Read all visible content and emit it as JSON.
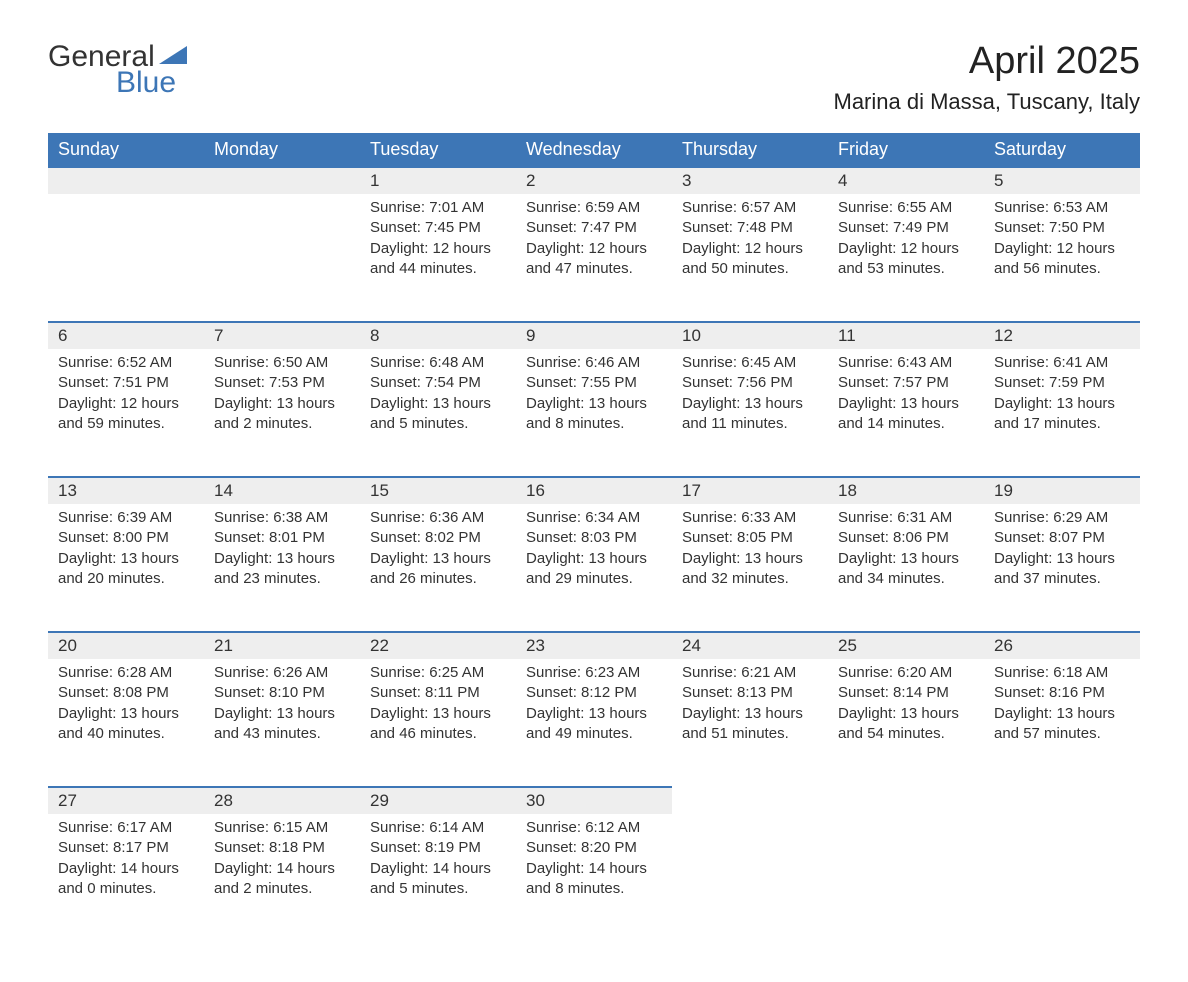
{
  "logo": {
    "text1": "General",
    "text2": "Blue",
    "brand_color": "#3d76b6"
  },
  "title": "April 2025",
  "location": "Marina di Massa, Tuscany, Italy",
  "colors": {
    "header_bg": "#3d76b6",
    "header_text": "#ffffff",
    "daynum_bg": "#eeeeee",
    "text": "#333333",
    "border": "#3d76b6"
  },
  "fonts": {
    "title_size_pt": 28,
    "location_size_pt": 17,
    "header_size_pt": 14,
    "daynum_size_pt": 13,
    "body_size_pt": 11
  },
  "weekdays": [
    "Sunday",
    "Monday",
    "Tuesday",
    "Wednesday",
    "Thursday",
    "Friday",
    "Saturday"
  ],
  "weeks": [
    [
      null,
      null,
      {
        "day": "1",
        "sunrise": "Sunrise: 7:01 AM",
        "sunset": "Sunset: 7:45 PM",
        "daylight": "Daylight: 12 hours and 44 minutes."
      },
      {
        "day": "2",
        "sunrise": "Sunrise: 6:59 AM",
        "sunset": "Sunset: 7:47 PM",
        "daylight": "Daylight: 12 hours and 47 minutes."
      },
      {
        "day": "3",
        "sunrise": "Sunrise: 6:57 AM",
        "sunset": "Sunset: 7:48 PM",
        "daylight": "Daylight: 12 hours and 50 minutes."
      },
      {
        "day": "4",
        "sunrise": "Sunrise: 6:55 AM",
        "sunset": "Sunset: 7:49 PM",
        "daylight": "Daylight: 12 hours and 53 minutes."
      },
      {
        "day": "5",
        "sunrise": "Sunrise: 6:53 AM",
        "sunset": "Sunset: 7:50 PM",
        "daylight": "Daylight: 12 hours and 56 minutes."
      }
    ],
    [
      {
        "day": "6",
        "sunrise": "Sunrise: 6:52 AM",
        "sunset": "Sunset: 7:51 PM",
        "daylight": "Daylight: 12 hours and 59 minutes."
      },
      {
        "day": "7",
        "sunrise": "Sunrise: 6:50 AM",
        "sunset": "Sunset: 7:53 PM",
        "daylight": "Daylight: 13 hours and 2 minutes."
      },
      {
        "day": "8",
        "sunrise": "Sunrise: 6:48 AM",
        "sunset": "Sunset: 7:54 PM",
        "daylight": "Daylight: 13 hours and 5 minutes."
      },
      {
        "day": "9",
        "sunrise": "Sunrise: 6:46 AM",
        "sunset": "Sunset: 7:55 PM",
        "daylight": "Daylight: 13 hours and 8 minutes."
      },
      {
        "day": "10",
        "sunrise": "Sunrise: 6:45 AM",
        "sunset": "Sunset: 7:56 PM",
        "daylight": "Daylight: 13 hours and 11 minutes."
      },
      {
        "day": "11",
        "sunrise": "Sunrise: 6:43 AM",
        "sunset": "Sunset: 7:57 PM",
        "daylight": "Daylight: 13 hours and 14 minutes."
      },
      {
        "day": "12",
        "sunrise": "Sunrise: 6:41 AM",
        "sunset": "Sunset: 7:59 PM",
        "daylight": "Daylight: 13 hours and 17 minutes."
      }
    ],
    [
      {
        "day": "13",
        "sunrise": "Sunrise: 6:39 AM",
        "sunset": "Sunset: 8:00 PM",
        "daylight": "Daylight: 13 hours and 20 minutes."
      },
      {
        "day": "14",
        "sunrise": "Sunrise: 6:38 AM",
        "sunset": "Sunset: 8:01 PM",
        "daylight": "Daylight: 13 hours and 23 minutes."
      },
      {
        "day": "15",
        "sunrise": "Sunrise: 6:36 AM",
        "sunset": "Sunset: 8:02 PM",
        "daylight": "Daylight: 13 hours and 26 minutes."
      },
      {
        "day": "16",
        "sunrise": "Sunrise: 6:34 AM",
        "sunset": "Sunset: 8:03 PM",
        "daylight": "Daylight: 13 hours and 29 minutes."
      },
      {
        "day": "17",
        "sunrise": "Sunrise: 6:33 AM",
        "sunset": "Sunset: 8:05 PM",
        "daylight": "Daylight: 13 hours and 32 minutes."
      },
      {
        "day": "18",
        "sunrise": "Sunrise: 6:31 AM",
        "sunset": "Sunset: 8:06 PM",
        "daylight": "Daylight: 13 hours and 34 minutes."
      },
      {
        "day": "19",
        "sunrise": "Sunrise: 6:29 AM",
        "sunset": "Sunset: 8:07 PM",
        "daylight": "Daylight: 13 hours and 37 minutes."
      }
    ],
    [
      {
        "day": "20",
        "sunrise": "Sunrise: 6:28 AM",
        "sunset": "Sunset: 8:08 PM",
        "daylight": "Daylight: 13 hours and 40 minutes."
      },
      {
        "day": "21",
        "sunrise": "Sunrise: 6:26 AM",
        "sunset": "Sunset: 8:10 PM",
        "daylight": "Daylight: 13 hours and 43 minutes."
      },
      {
        "day": "22",
        "sunrise": "Sunrise: 6:25 AM",
        "sunset": "Sunset: 8:11 PM",
        "daylight": "Daylight: 13 hours and 46 minutes."
      },
      {
        "day": "23",
        "sunrise": "Sunrise: 6:23 AM",
        "sunset": "Sunset: 8:12 PM",
        "daylight": "Daylight: 13 hours and 49 minutes."
      },
      {
        "day": "24",
        "sunrise": "Sunrise: 6:21 AM",
        "sunset": "Sunset: 8:13 PM",
        "daylight": "Daylight: 13 hours and 51 minutes."
      },
      {
        "day": "25",
        "sunrise": "Sunrise: 6:20 AM",
        "sunset": "Sunset: 8:14 PM",
        "daylight": "Daylight: 13 hours and 54 minutes."
      },
      {
        "day": "26",
        "sunrise": "Sunrise: 6:18 AM",
        "sunset": "Sunset: 8:16 PM",
        "daylight": "Daylight: 13 hours and 57 minutes."
      }
    ],
    [
      {
        "day": "27",
        "sunrise": "Sunrise: 6:17 AM",
        "sunset": "Sunset: 8:17 PM",
        "daylight": "Daylight: 14 hours and 0 minutes."
      },
      {
        "day": "28",
        "sunrise": "Sunrise: 6:15 AM",
        "sunset": "Sunset: 8:18 PM",
        "daylight": "Daylight: 14 hours and 2 minutes."
      },
      {
        "day": "29",
        "sunrise": "Sunrise: 6:14 AM",
        "sunset": "Sunset: 8:19 PM",
        "daylight": "Daylight: 14 hours and 5 minutes."
      },
      {
        "day": "30",
        "sunrise": "Sunrise: 6:12 AM",
        "sunset": "Sunset: 8:20 PM",
        "daylight": "Daylight: 14 hours and 8 minutes."
      },
      null,
      null,
      null
    ]
  ]
}
